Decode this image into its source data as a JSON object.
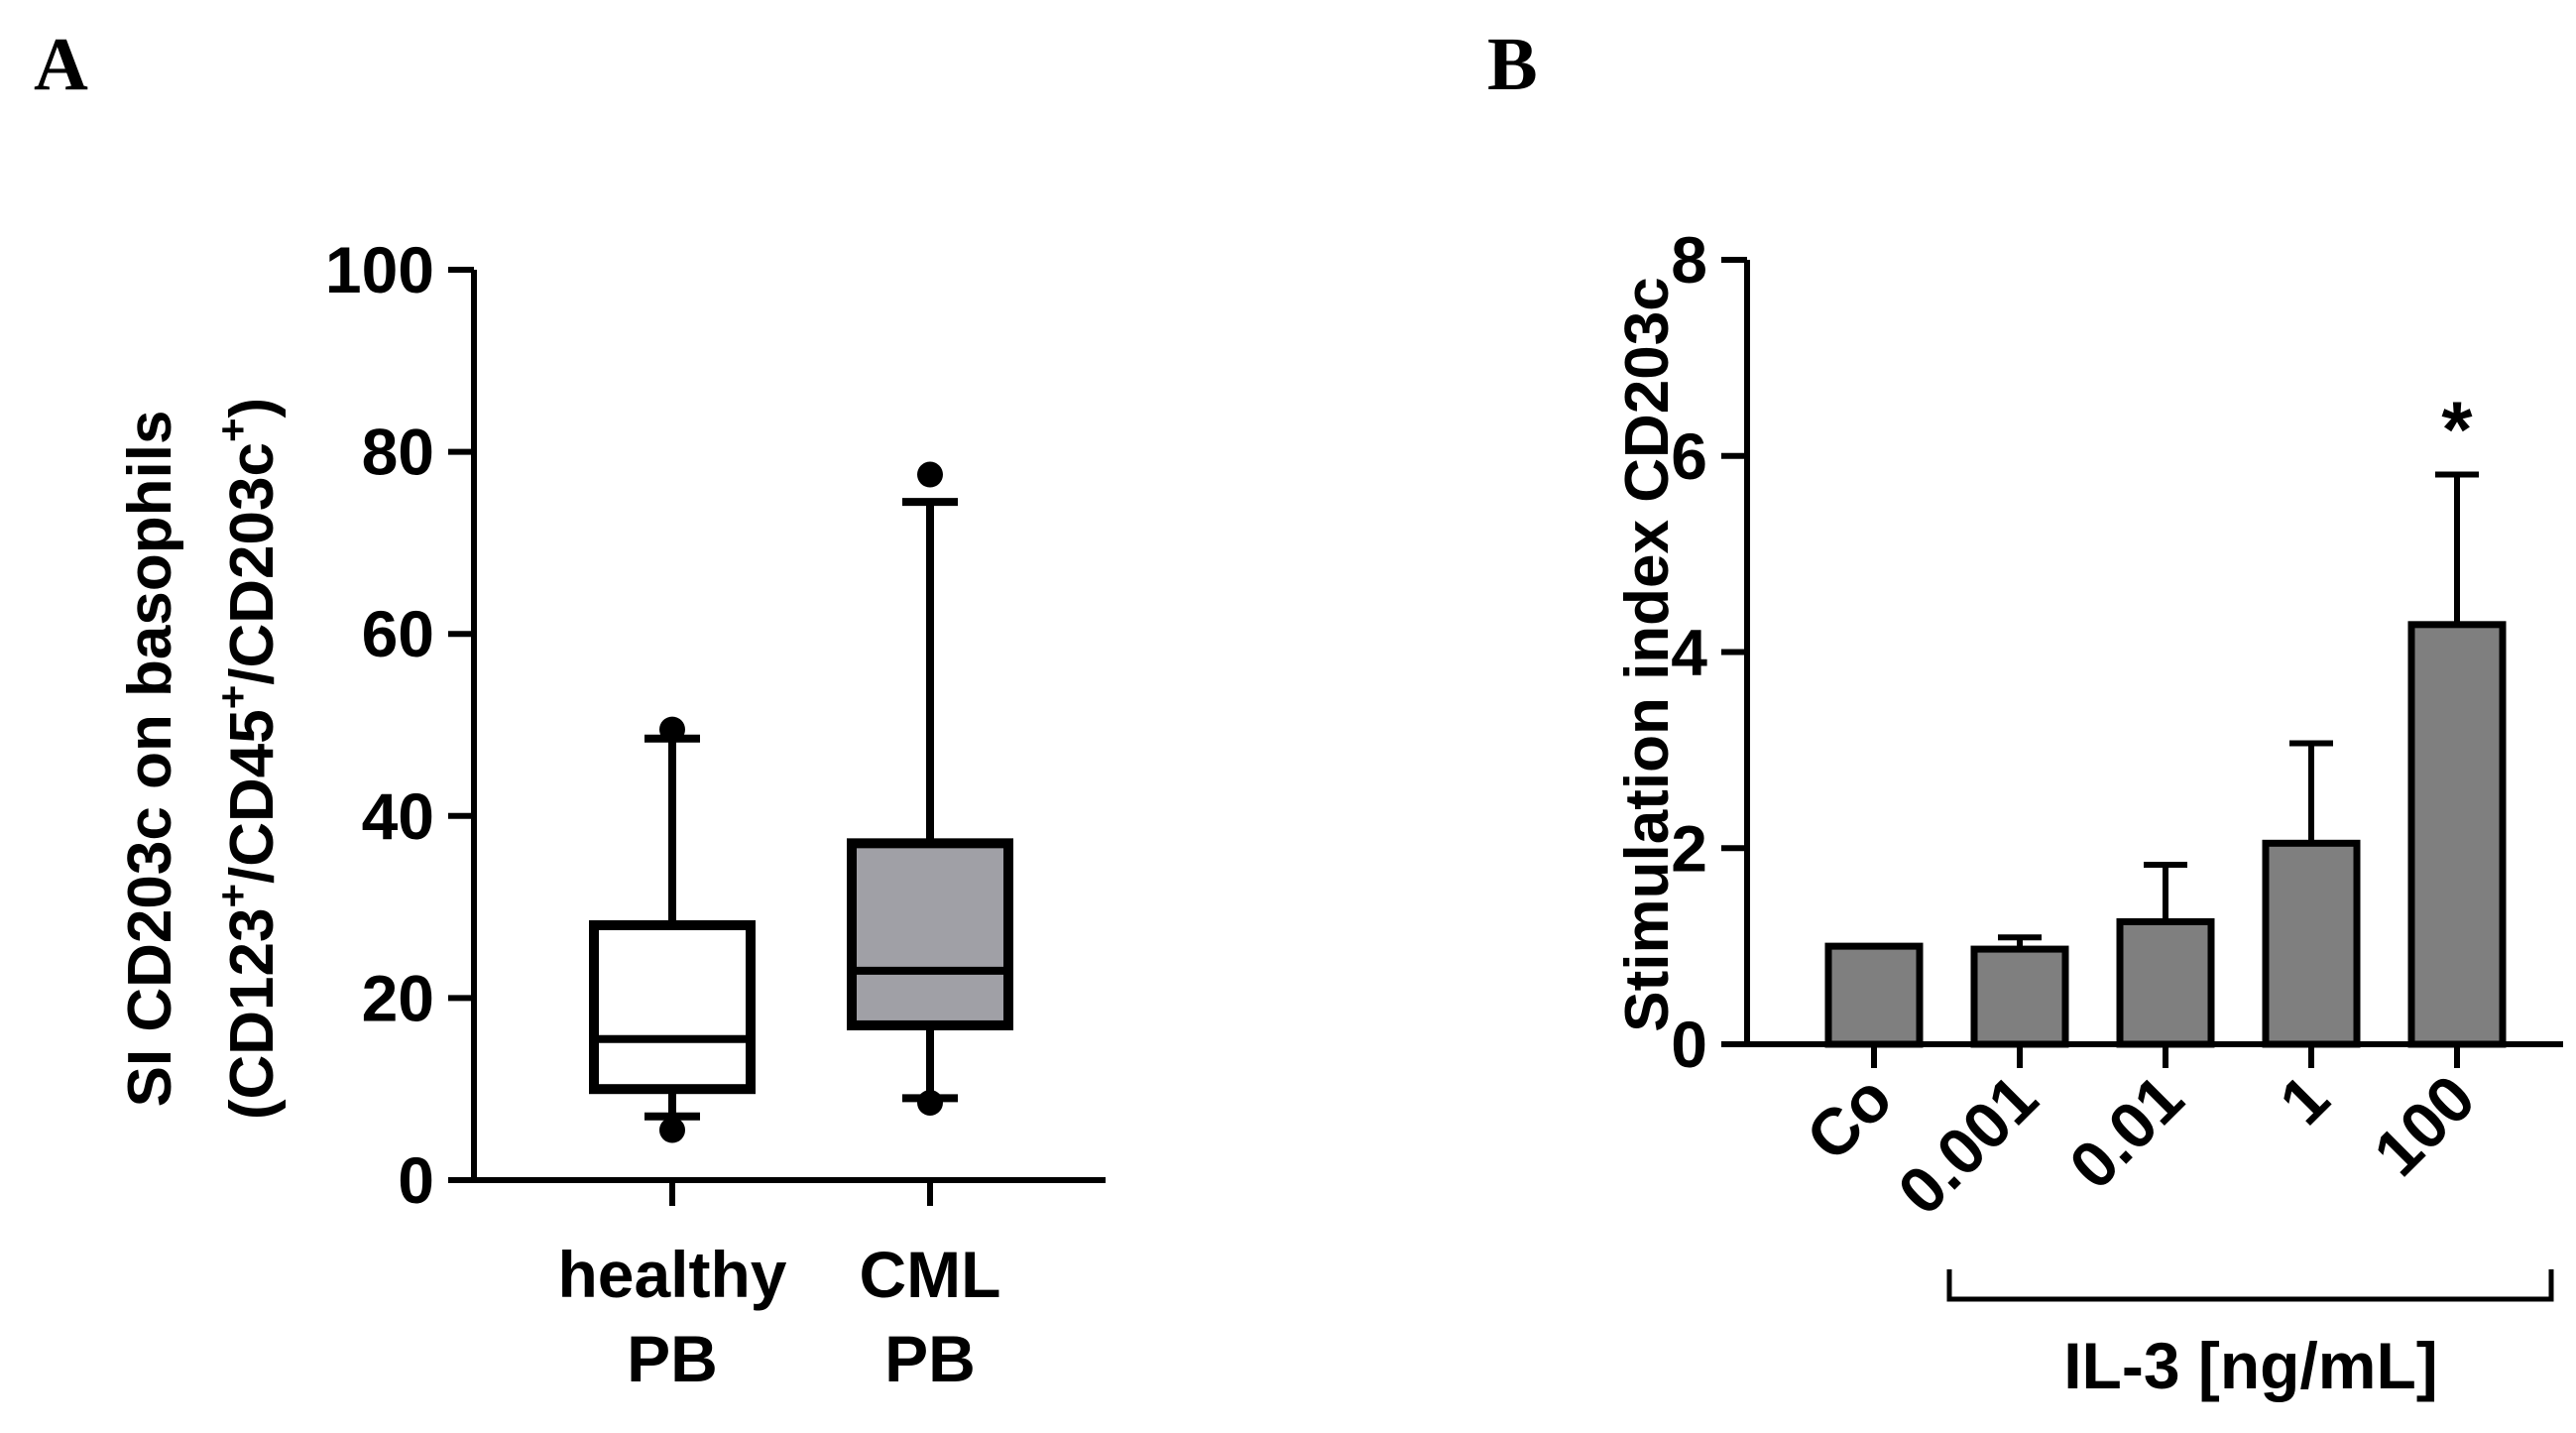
{
  "panels": {
    "a": "A",
    "b": "B"
  },
  "chart_data": [
    {
      "id": "A",
      "type": "boxplot",
      "ylabel_line1": "SI CD203c on basophils",
      "ylabel_line2": {
        "p1": "(CD123",
        "s1": "+",
        "p2": "/CD45",
        "s2": "+",
        "p3": "/CD203c",
        "s3": "+",
        "p4": ")"
      },
      "ylim": [
        0,
        100
      ],
      "yticks": [
        "0",
        "20",
        "40",
        "60",
        "80",
        "100"
      ],
      "categories": [
        {
          "line1": "healthy",
          "line2": "PB"
        },
        {
          "line1": "CML",
          "line2": "PB"
        }
      ],
      "boxes": [
        {
          "name": "healthy PB",
          "whisker_low": 7,
          "q1": 10,
          "median": 15.5,
          "q3": 28,
          "whisker_high": 48.5,
          "outliers_low": [
            5.5
          ],
          "outliers_high": [
            49.5
          ],
          "fill": "#ffffff"
        },
        {
          "name": "CML PB",
          "whisker_low": 9,
          "q1": 17,
          "median": 23,
          "q3": 37,
          "whisker_high": 74.5,
          "outliers_low": [
            8.5
          ],
          "outliers_high": [
            77.5
          ],
          "fill": "#a0a0a6"
        }
      ]
    },
    {
      "id": "B",
      "type": "bar",
      "ylabel": "Stimulation index CD203c",
      "ylim": [
        0,
        8
      ],
      "yticks": [
        "0",
        "2",
        "4",
        "6",
        "8"
      ],
      "categories": [
        "Co",
        "0.001",
        "0.01",
        "1",
        "100"
      ],
      "values": [
        1.0,
        0.97,
        1.25,
        2.05,
        4.28
      ],
      "errors": [
        0,
        0.12,
        0.58,
        1.02,
        1.53
      ],
      "bar_color": "#7f7f7f",
      "significance": {
        "index": 4,
        "label": "*"
      },
      "group_label": "IL-3 [ng/mL]"
    }
  ]
}
